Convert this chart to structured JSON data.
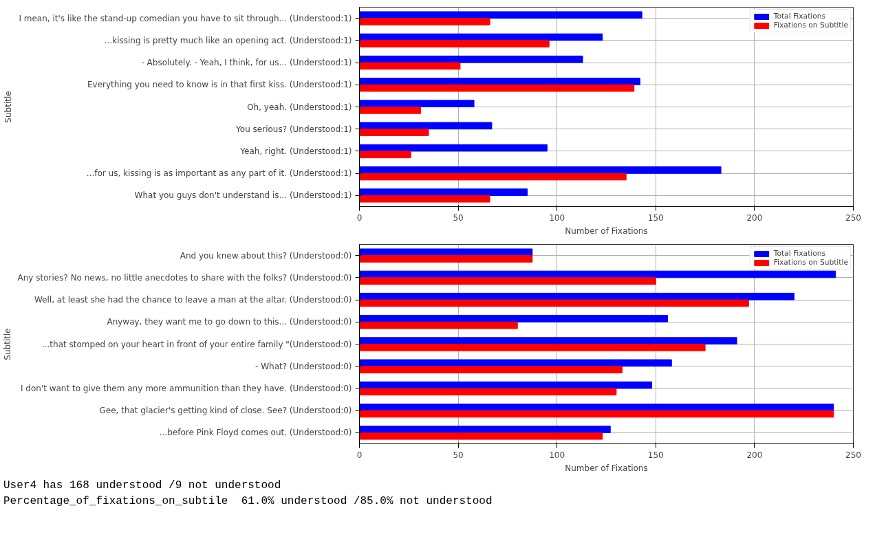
{
  "chart_data": [
    {
      "type": "bar",
      "orientation": "horizontal",
      "xlabel": "Number of Fixations",
      "ylabel": "Subtitle",
      "categories": [
        "I mean, it's like the stand-up comedian you have to sit through... (Understood:1)",
        "...kissing is pretty much like an opening act. (Understood:1)",
        "- Absolutely. - Yeah, I think, for us... (Understood:1)",
        "Everything you need to know is in that first kiss. (Understood:1)",
        "Oh, yeah. (Understood:1)",
        "You serious? (Understood:1)",
        "Yeah, right. (Understood:1)",
        "...for us, kissing is as important as any part of it. (Understood:1)",
        "What you guys don't understand is... (Understood:1)"
      ],
      "series": [
        {
          "name": "Total Fixations",
          "color": "#0000ff",
          "values": [
            143,
            123,
            113,
            142,
            58,
            67,
            95,
            183,
            85
          ]
        },
        {
          "name": "Fixations on Subtitle",
          "color": "#ff0000",
          "values": [
            66,
            96,
            51,
            139,
            31,
            35,
            26,
            135,
            66
          ]
        }
      ],
      "xlim": [
        0,
        250
      ],
      "xticks": [
        0,
        50,
        100,
        150,
        200,
        250
      ],
      "grid": true,
      "legend": "top right"
    },
    {
      "type": "bar",
      "orientation": "horizontal",
      "xlabel": "Number of Fixations",
      "ylabel": "Subtitle",
      "categories": [
        "And you knew about this? (Understood:0)",
        "Any stories? No news, no little anecdotes to share with the folks? (Understood:0)",
        "Well, at least she had the chance to leave a man at the altar. (Understood:0)",
        "Anyway, they want me to go down to this... (Understood:0)",
        "...that stomped on your heart in front of your entire family \"(Understood:0)",
        "- What? (Understood:0)",
        "I don't want to give them any more ammunition than they have. (Understood:0)",
        "Gee, that glacier's getting kind of close. See? (Understood:0)",
        "...before Pink Floyd comes out. (Understood:0)"
      ],
      "series": [
        {
          "name": "Total Fixations",
          "color": "#0000ff",
          "values": [
            87.5,
            241,
            220,
            156,
            191,
            158,
            148,
            240,
            127
          ]
        },
        {
          "name": "Fixations on Subtitle",
          "color": "#ff0000",
          "values": [
            87.5,
            150,
            197,
            80,
            175,
            133,
            130,
            240,
            123
          ]
        }
      ],
      "xlim": [
        0,
        250
      ],
      "xticks": [
        0,
        50,
        100,
        150,
        200,
        250
      ],
      "grid": true,
      "legend": "top right",
      "annotations": [
        "User4 has 168 understood /9 not understood",
        "Percentage_of_fixations_on_subtile  61.0% understood /85.0% not understood"
      ]
    }
  ]
}
